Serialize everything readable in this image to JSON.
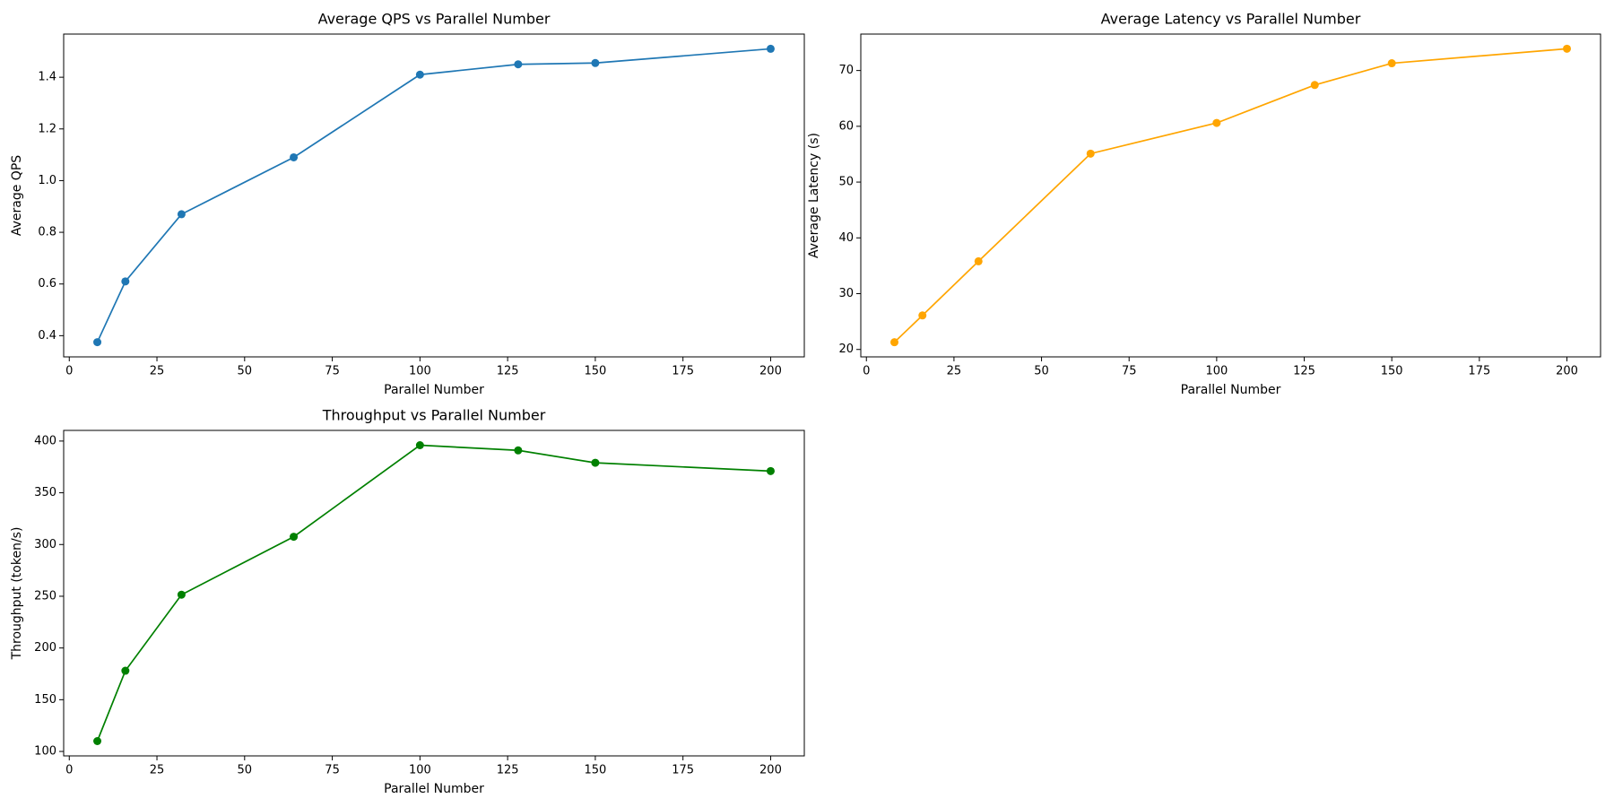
{
  "chart_data": [
    {
      "type": "line",
      "title": "Average QPS vs Parallel Number",
      "x_label": "Parallel Number",
      "y_label": "Average QPS",
      "x": [
        8,
        16,
        32,
        64,
        100,
        128,
        150,
        200
      ],
      "series": [
        {
          "name": "Average QPS",
          "color": "#1f77b4",
          "values": [
            0.375,
            0.61,
            0.87,
            1.09,
            1.41,
            1.45,
            1.455,
            1.51
          ]
        }
      ],
      "xlim": [
        -1.6,
        209.6
      ],
      "xticks": [
        0,
        25,
        50,
        75,
        100,
        125,
        150,
        175,
        200
      ],
      "ylim": [
        0.318,
        1.567
      ],
      "yticks": [
        0.4,
        0.6,
        0.8,
        {
          "value": 1.0,
          "label": "1.0"
        },
        1.2,
        1.4
      ]
    },
    {
      "type": "line",
      "title": "Average Latency vs Parallel Number",
      "x_label": "Parallel Number",
      "y_label": "Average Latency (s)",
      "x": [
        8,
        16,
        32,
        64,
        100,
        128,
        150,
        200
      ],
      "series": [
        {
          "name": "Average Latency (s)",
          "color": "#ffa500",
          "values": [
            21.3,
            26.1,
            35.8,
            55.1,
            60.6,
            67.4,
            71.3,
            73.9
          ]
        }
      ],
      "xlim": [
        -1.6,
        209.6
      ],
      "xticks": [
        0,
        25,
        50,
        75,
        100,
        125,
        150,
        175,
        200
      ],
      "ylim": [
        18.67,
        76.53
      ],
      "yticks": [
        20,
        30,
        40,
        50,
        60,
        70
      ]
    },
    {
      "type": "line",
      "title": "Throughput vs Parallel Number",
      "x_label": "Parallel Number",
      "y_label": "Throughput (token/s)",
      "x": [
        8,
        16,
        32,
        64,
        100,
        128,
        150,
        200
      ],
      "series": [
        {
          "name": "Throughput (token/s)",
          "color": "#008000",
          "values": [
            110,
            178,
            251.5,
            307.5,
            396,
            391,
            379,
            371
          ]
        }
      ],
      "xlim": [
        -1.6,
        209.6
      ],
      "xticks": [
        0,
        25,
        50,
        75,
        100,
        125,
        150,
        175,
        200
      ],
      "ylim": [
        95.7,
        410.3
      ],
      "yticks": [
        100,
        150,
        200,
        250,
        300,
        350,
        400
      ]
    }
  ]
}
